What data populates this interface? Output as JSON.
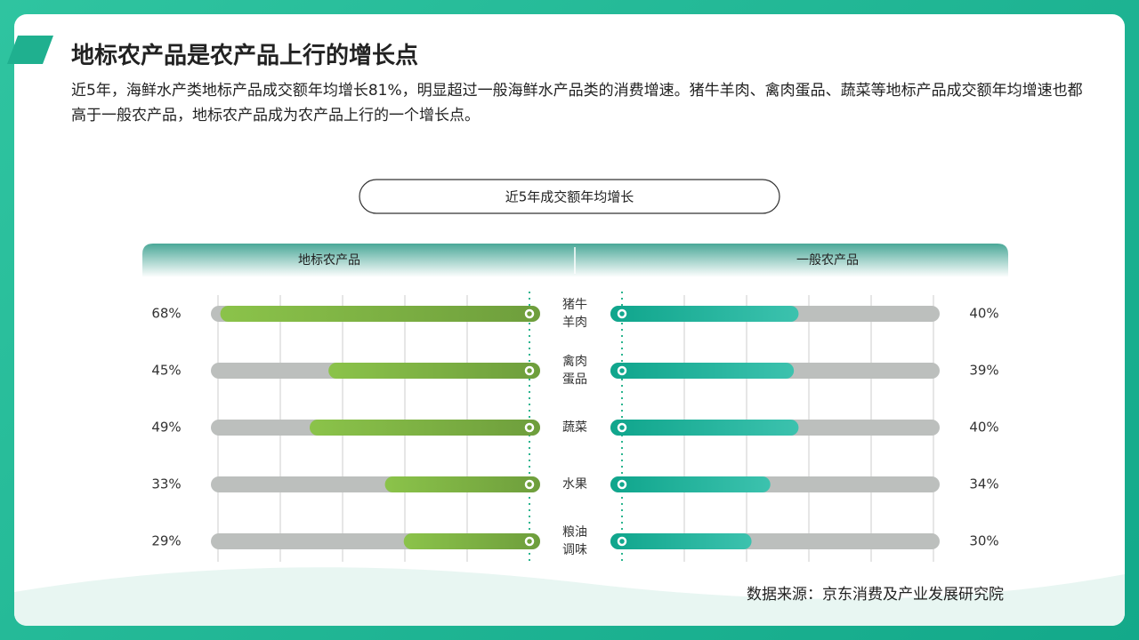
{
  "header": {
    "title": "地标农产品是农产品上行的增长点",
    "description": "近5年，海鲜水产类地标产品成交额年均增长81%，明显超过一般海鲜水产品类的消费增速。猪牛羊肉、禽肉蛋品、蔬菜等地标产品成交额年均增速也都高于一般农产品，地标农产品成为农产品上行的一个增长点。"
  },
  "chart_data": {
    "type": "butterfly-bar",
    "title": "近5年成交额年均增长",
    "categories": [
      "猪牛羊肉",
      "禽肉蛋品",
      "蔬菜",
      "水果",
      "粮油调味"
    ],
    "series": [
      {
        "name": "地标农产品",
        "color": "#7cb342",
        "values": [
          68,
          45,
          49,
          33,
          29
        ],
        "value_labels": [
          "68%",
          "45%",
          "49%",
          "33%",
          "29%"
        ]
      },
      {
        "name": "一般农产品",
        "color": "#14ad94",
        "values": [
          40,
          39,
          40,
          34,
          30
        ],
        "value_labels": [
          "40%",
          "39%",
          "40%",
          "34%",
          "30%"
        ]
      }
    ],
    "xlim": [
      0,
      70
    ]
  },
  "footer": {
    "source": "数据来源：京东消费及产业发展研究院"
  }
}
